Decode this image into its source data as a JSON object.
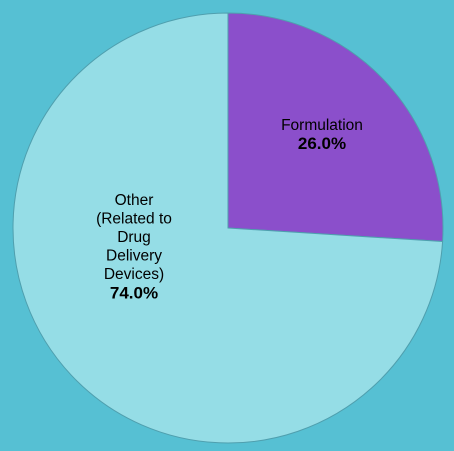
{
  "chart_data": {
    "type": "pie",
    "title": "",
    "slices": [
      {
        "label_lines": [
          "Formulation"
        ],
        "value": 26.0,
        "value_label": "26.0%",
        "color": "#8b4fcb"
      },
      {
        "label_lines": [
          "Other",
          "(Related to",
          "Drug",
          "Delivery",
          "Devices)"
        ],
        "value": 74.0,
        "value_label": "74.0%",
        "color": "#95dde6"
      }
    ],
    "start_angle_deg": 0,
    "direction": "clockwise",
    "legend": "none"
  },
  "colors": {
    "background": "#56c0d3",
    "slice_outline": "#4f9fae"
  }
}
